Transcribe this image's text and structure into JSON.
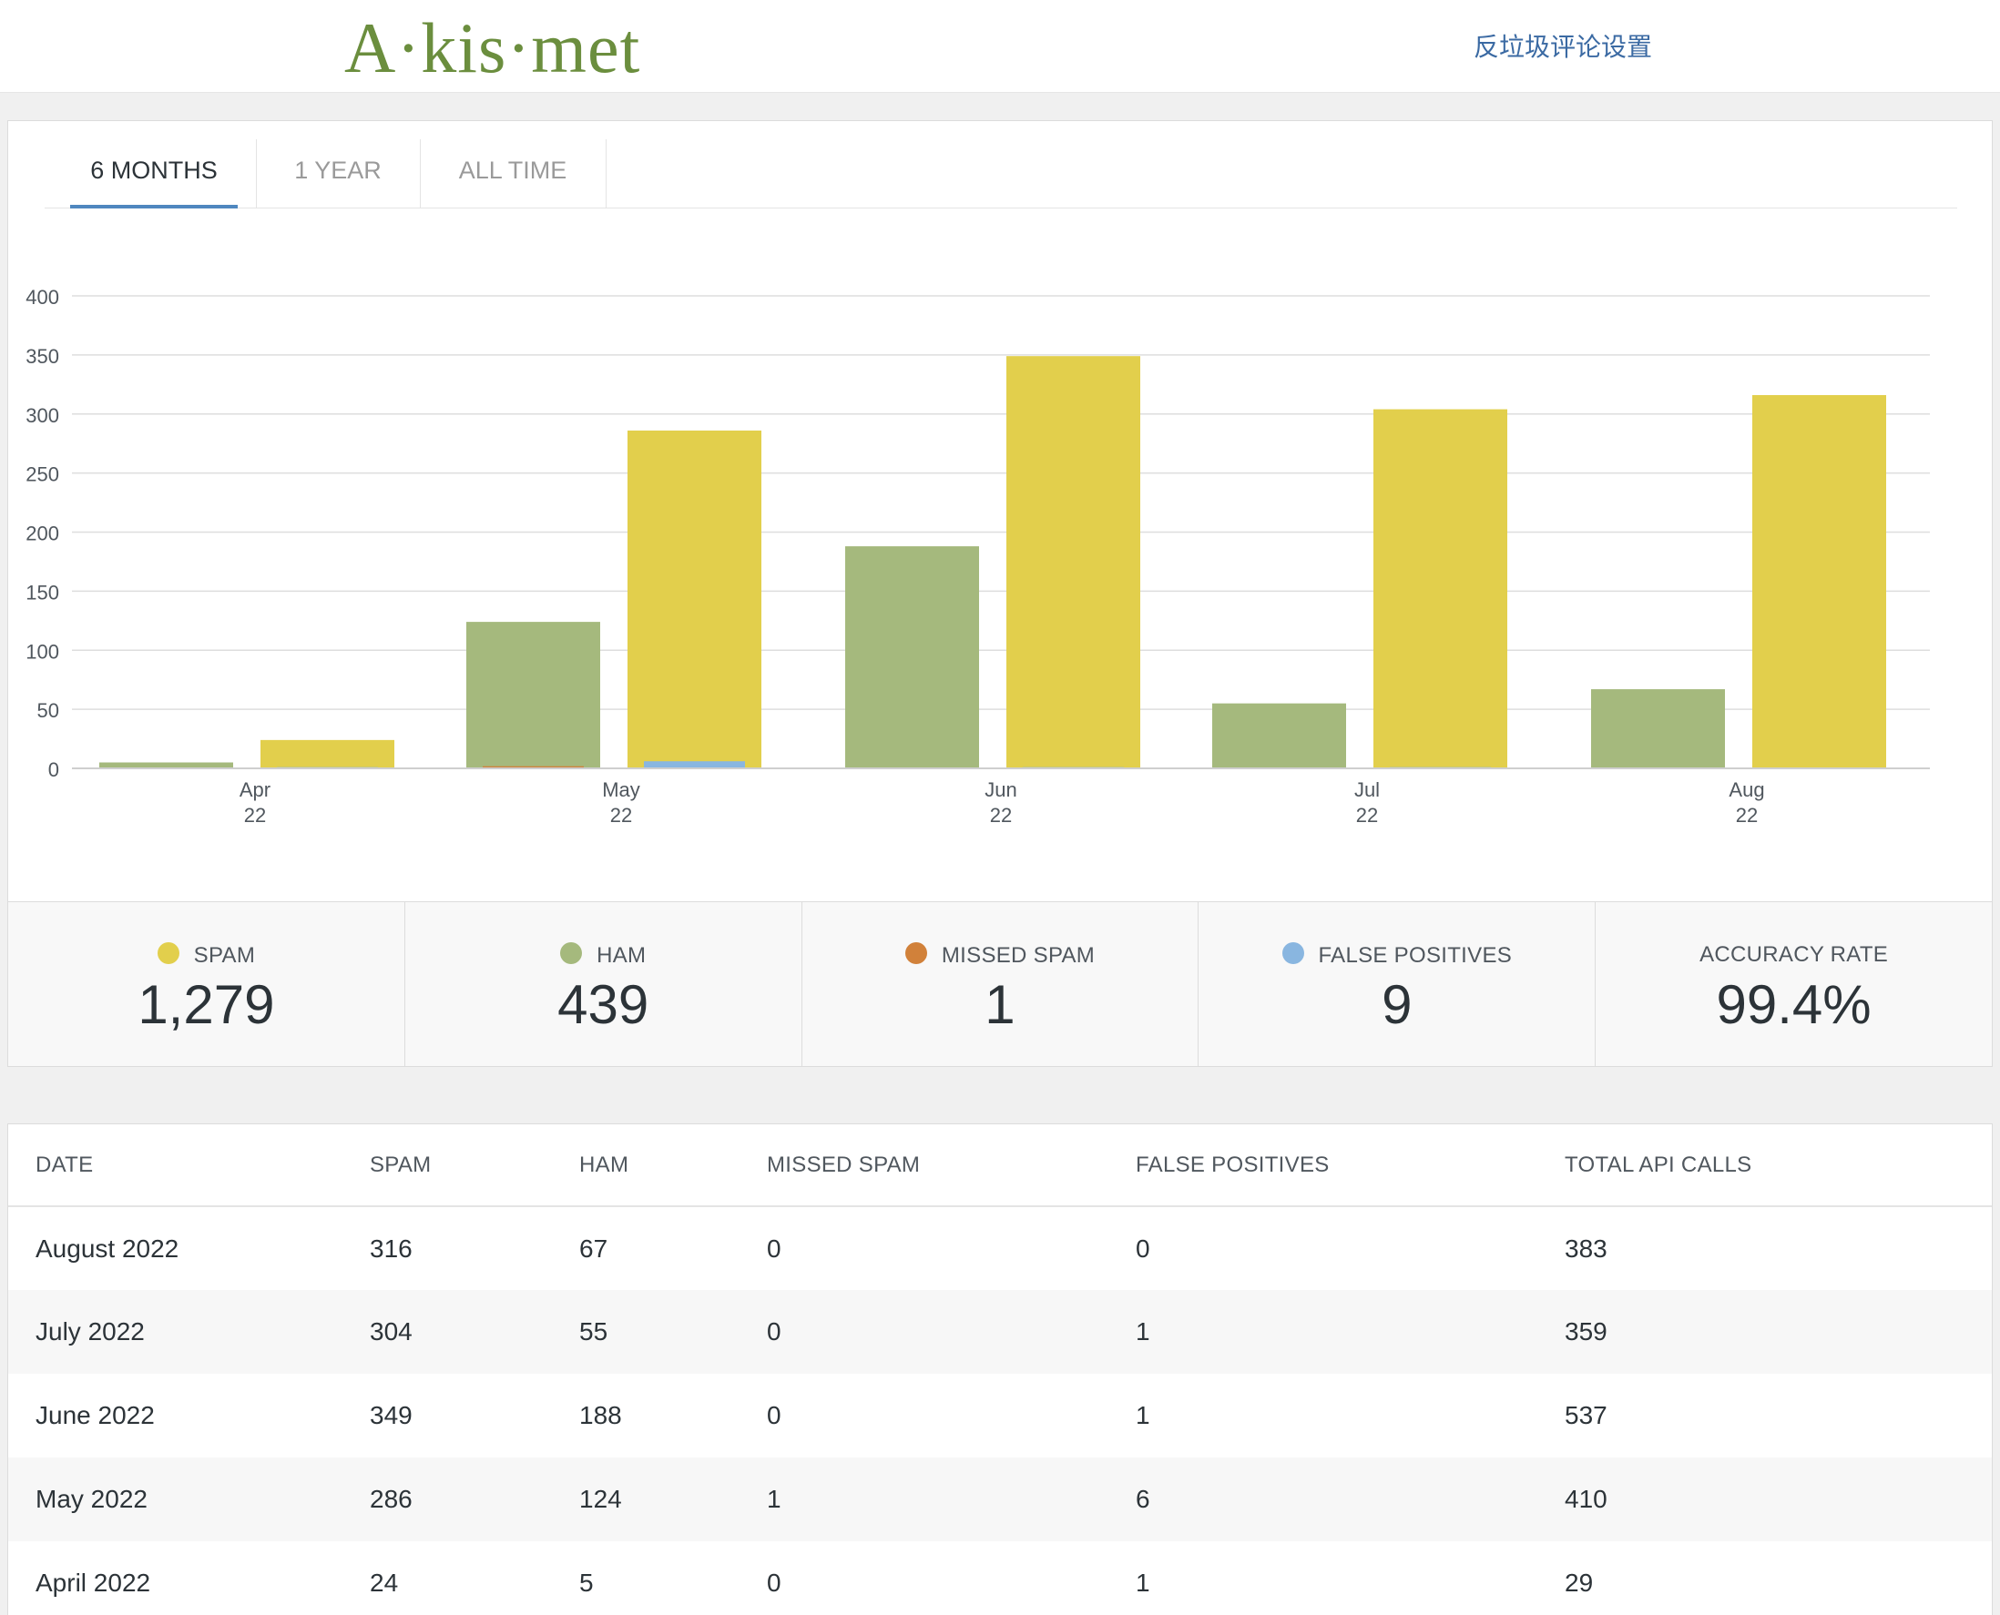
{
  "header": {
    "logo": "A·kis·met",
    "settings_link": "反垃圾评论设置"
  },
  "tabs": [
    "6 MONTHS",
    "1 YEAR",
    "ALL TIME"
  ],
  "active_tab": 0,
  "colors": {
    "spam": "#e2cf4c",
    "ham": "#a5b97d",
    "missed_spam": "#d1813a",
    "false_positives": "#89b6e0",
    "tab_accent": "#4f87bf"
  },
  "chart_data": {
    "type": "bar",
    "categories": [
      "Apr 22",
      "May 22",
      "Jun 22",
      "Jul 22",
      "Aug 22"
    ],
    "category_labels": [
      [
        "Apr",
        "22"
      ],
      [
        "May",
        "22"
      ],
      [
        "Jun",
        "22"
      ],
      [
        "Jul",
        "22"
      ],
      [
        "Aug",
        "22"
      ]
    ],
    "series": [
      {
        "name": "HAM",
        "color": "#a5b97d",
        "values": [
          5,
          124,
          188,
          55,
          67
        ]
      },
      {
        "name": "MISSED SPAM",
        "color": "#d1813a",
        "values": [
          0,
          1,
          0,
          0,
          0
        ]
      },
      {
        "name": "SPAM",
        "color": "#e2cf4c",
        "values": [
          24,
          286,
          349,
          304,
          316
        ]
      },
      {
        "name": "FALSE POSITIVES",
        "color": "#89b6e0",
        "values": [
          1,
          6,
          1,
          1,
          0
        ]
      }
    ],
    "yticks": [
      0,
      50,
      100,
      150,
      200,
      250,
      300,
      350,
      400
    ],
    "ylim": [
      0,
      400
    ],
    "grid": true
  },
  "stats": [
    {
      "label": "SPAM",
      "value": "1,279",
      "color": "#e2cf4c"
    },
    {
      "label": "HAM",
      "value": "439",
      "color": "#a5b97d"
    },
    {
      "label": "MISSED SPAM",
      "value": "1",
      "color": "#d1813a"
    },
    {
      "label": "FALSE POSITIVES",
      "value": "9",
      "color": "#89b6e0"
    },
    {
      "label": "ACCURACY RATE",
      "value": "99.4%",
      "color": ""
    }
  ],
  "table": {
    "headers": [
      "DATE",
      "SPAM",
      "HAM",
      "MISSED SPAM",
      "FALSE POSITIVES",
      "TOTAL API CALLS"
    ],
    "rows": [
      [
        "August 2022",
        "316",
        "67",
        "0",
        "0",
        "383"
      ],
      [
        "July 2022",
        "304",
        "55",
        "0",
        "1",
        "359"
      ],
      [
        "June 2022",
        "349",
        "188",
        "0",
        "1",
        "537"
      ],
      [
        "May 2022",
        "286",
        "124",
        "1",
        "6",
        "410"
      ],
      [
        "April 2022",
        "24",
        "5",
        "0",
        "1",
        "29"
      ]
    ]
  }
}
